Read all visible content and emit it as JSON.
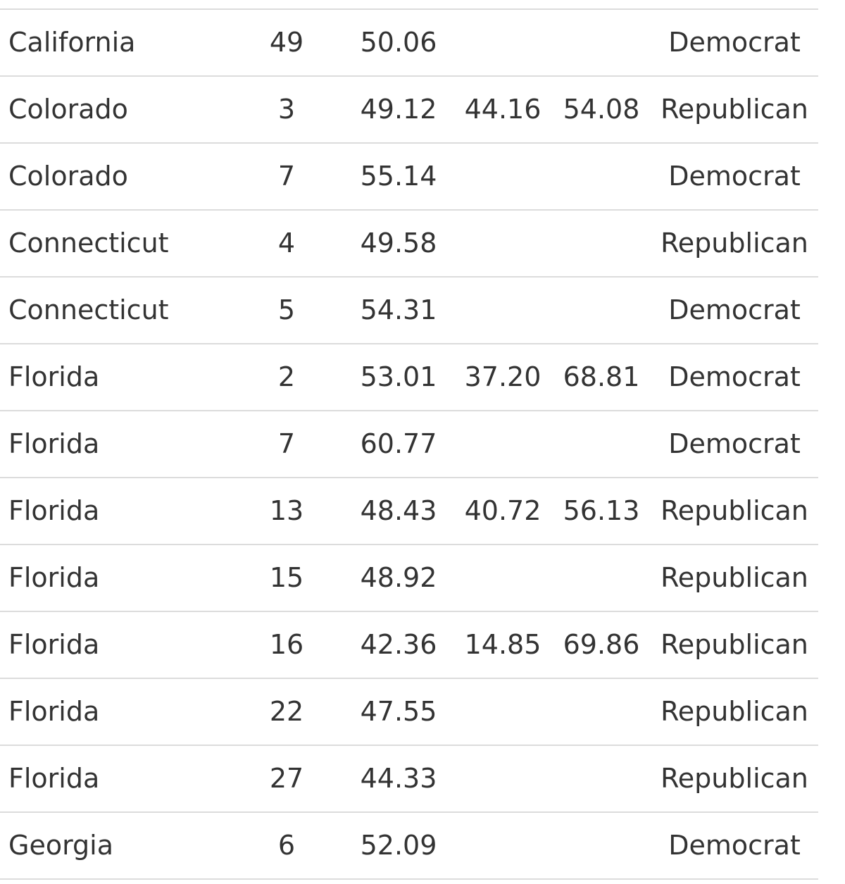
{
  "rows": [
    {
      "state": "California",
      "district": "49",
      "pct": "50.06",
      "lo": "",
      "hi": "",
      "party": "Democrat"
    },
    {
      "state": "Colorado",
      "district": "3",
      "pct": "49.12",
      "lo": "44.16",
      "hi": "54.08",
      "party": "Republican"
    },
    {
      "state": "Colorado",
      "district": "7",
      "pct": "55.14",
      "lo": "",
      "hi": "",
      "party": "Democrat"
    },
    {
      "state": "Connecticut",
      "district": "4",
      "pct": "49.58",
      "lo": "",
      "hi": "",
      "party": "Republican"
    },
    {
      "state": "Connecticut",
      "district": "5",
      "pct": "54.31",
      "lo": "",
      "hi": "",
      "party": "Democrat"
    },
    {
      "state": "Florida",
      "district": "2",
      "pct": "53.01",
      "lo": "37.20",
      "hi": "68.81",
      "party": "Democrat"
    },
    {
      "state": "Florida",
      "district": "7",
      "pct": "60.77",
      "lo": "",
      "hi": "",
      "party": "Democrat"
    },
    {
      "state": "Florida",
      "district": "13",
      "pct": "48.43",
      "lo": "40.72",
      "hi": "56.13",
      "party": "Republican"
    },
    {
      "state": "Florida",
      "district": "15",
      "pct": "48.92",
      "lo": "",
      "hi": "",
      "party": "Republican"
    },
    {
      "state": "Florida",
      "district": "16",
      "pct": "42.36",
      "lo": "14.85",
      "hi": "69.86",
      "party": "Republican"
    },
    {
      "state": "Florida",
      "district": "22",
      "pct": "47.55",
      "lo": "",
      "hi": "",
      "party": "Republican"
    },
    {
      "state": "Florida",
      "district": "27",
      "pct": "44.33",
      "lo": "",
      "hi": "",
      "party": "Republican"
    },
    {
      "state": "Georgia",
      "district": "6",
      "pct": "52.09",
      "lo": "",
      "hi": "",
      "party": "Democrat"
    }
  ]
}
